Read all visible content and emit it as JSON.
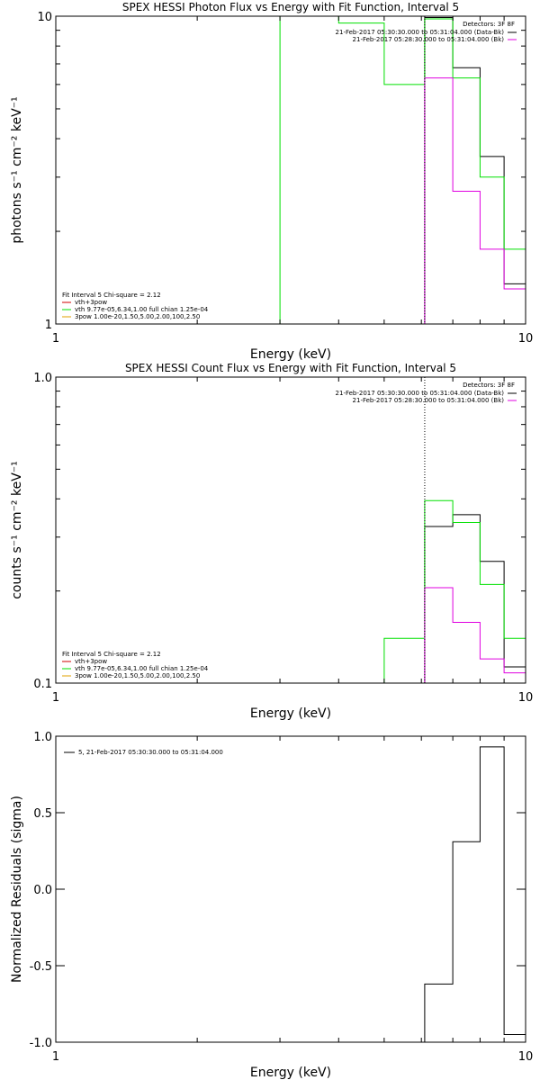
{
  "colors": {
    "background": "#ffffff",
    "foreground": "#000000",
    "photon_total": "#000000",
    "vth": "#00e000",
    "vth_3pow": "#e000e0",
    "three_pow": "#e0a000",
    "fit_legend_red": "#d00000"
  },
  "chart_data": [
    {
      "type": "line",
      "title": "SPEX HESSI Photon Flux vs Energy with Fit Function, Interval 5",
      "xlabel": "Energy (keV)",
      "ylabel": "photons s⁻¹ cm⁻² keV⁻¹",
      "xscale": "log",
      "yscale": "log",
      "xlim": [
        1,
        10
      ],
      "ylim": [
        1,
        10
      ],
      "x_ticklabels": [
        "1",
        "10"
      ],
      "y_ticklabels": [
        "1",
        "10"
      ],
      "detectors_label": "Detectors: 3F 8F",
      "time_ranges": [
        {
          "text": "21-Feb-2017 05:30:30.000 to 05:31:04.000 (Data-Bk)",
          "color": "#000000"
        },
        {
          "text": "21-Feb-2017 05:28:30.000 to 05:31:04.000 (Bk)",
          "color": "#e000e0"
        }
      ],
      "fit_legend": [
        {
          "text": "Fit Interval 5   Chi-square = 2.12",
          "color": ""
        },
        {
          "text": "vth+3pow",
          "color": "#d00000"
        },
        {
          "text": "vth 9.77e-05,6.34,1.00  full chian 1.25e-04",
          "color": "#00e000"
        },
        {
          "text": "3pow 1.00e-20,1.50,5.00,2.00,100,2.50",
          "color": "#e0a000"
        }
      ],
      "vline": 6.1,
      "series": [
        {
          "key": "total",
          "color": "#000000",
          "edges": [
            6.1,
            7.0,
            8.0,
            9.0,
            10.0
          ],
          "values": [
            9.9,
            6.8,
            3.5,
            1.35
          ]
        },
        {
          "key": "vth",
          "color": "#00e000",
          "edges": [
            3.0,
            4.0,
            5.0,
            6.1,
            7.0,
            8.0,
            9.0,
            10.0
          ],
          "values": [
            10.5,
            9.5,
            6.0,
            9.8,
            6.3,
            3.0,
            1.75
          ]
        },
        {
          "key": "bk",
          "color": "#e000e0",
          "edges": [
            6.1,
            7.0,
            8.0,
            9.0,
            10.0
          ],
          "values": [
            6.3,
            2.7,
            1.75,
            1.3
          ]
        }
      ]
    },
    {
      "type": "line",
      "title": "SPEX HESSI Count Flux vs Energy with Fit Function, Interval 5",
      "xlabel": "Energy (keV)",
      "ylabel": "counts s⁻¹ cm⁻² keV⁻¹",
      "xscale": "log",
      "yscale": "log",
      "xlim": [
        1,
        10
      ],
      "ylim": [
        0.1,
        1.0
      ],
      "x_ticklabels": [
        "1",
        "10"
      ],
      "y_ticklabels": [
        "0.1",
        "1.0"
      ],
      "detectors_label": "Detectors: 3F 8F",
      "time_ranges": [
        {
          "text": "21-Feb-2017 05:30:30.000 to 05:31:04.000 (Data-Bk)",
          "color": "#000000"
        },
        {
          "text": "21-Feb-2017 05:28:30.000 to 05:31:04.000 (Bk)",
          "color": "#e000e0"
        }
      ],
      "fit_legend": [
        {
          "text": "Fit Interval 5   Chi-square = 2.12",
          "color": ""
        },
        {
          "text": "vth+3pow",
          "color": "#d00000"
        },
        {
          "text": "vth 9.77e-05,6.34,1.00  full chian 1.25e-04",
          "color": "#00e000"
        },
        {
          "text": "3pow 1.00e-20,1.50,5.00,2.00,100,2.50",
          "color": "#e0a000"
        }
      ],
      "vline": 6.1,
      "series": [
        {
          "key": "total",
          "color": "#000000",
          "edges": [
            6.1,
            7.0,
            8.0,
            9.0,
            10.0
          ],
          "values": [
            0.325,
            0.355,
            0.25,
            0.113
          ]
        },
        {
          "key": "vth",
          "color": "#00e000",
          "edges": [
            5.0,
            6.1,
            7.0,
            8.0,
            9.0,
            10.0
          ],
          "values": [
            0.14,
            0.395,
            0.335,
            0.21,
            0.14
          ]
        },
        {
          "key": "bk",
          "color": "#e000e0",
          "edges": [
            6.1,
            7.0,
            8.0,
            9.0,
            10.0
          ],
          "values": [
            0.205,
            0.158,
            0.12,
            0.108
          ]
        }
      ]
    },
    {
      "type": "line",
      "title": "",
      "xlabel": "Energy (keV)",
      "ylabel": "Normalized Residuals (sigma)",
      "xscale": "log",
      "yscale": "linear",
      "xlim": [
        1,
        10
      ],
      "ylim": [
        -1.0,
        1.0
      ],
      "x_ticklabels": [
        "1",
        "10"
      ],
      "y_ticks": [
        -1.0,
        -0.5,
        0.0,
        0.5,
        1.0
      ],
      "y_ticklabels": [
        "-1.0",
        "-0.5",
        "0.0",
        "0.5",
        "1.0"
      ],
      "legend": [
        {
          "text": "5, 21-Feb-2017 05:30:30.000 to 05:31:04.000",
          "color": "#000000"
        }
      ],
      "series": [
        {
          "key": "residuals",
          "color": "#000000",
          "edges": [
            6.1,
            7.0,
            8.0,
            9.0,
            10.0
          ],
          "values": [
            -0.62,
            0.31,
            0.93,
            -0.95
          ]
        }
      ]
    }
  ]
}
